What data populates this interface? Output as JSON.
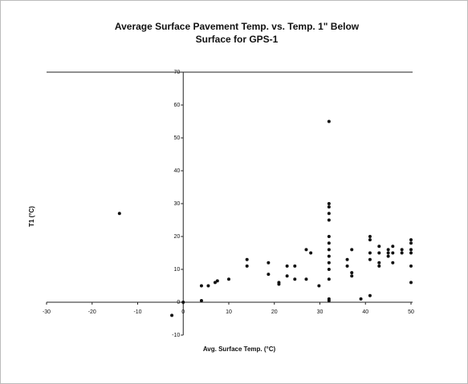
{
  "chart_data": {
    "type": "scatter",
    "title": [
      "Average Surface Pavement Temp. vs. Temp. 1\" Below",
      "Surface for GPS-1"
    ],
    "x_label": "Avg. Surface Temp. (°C)",
    "y_label": "T1 (°C)",
    "xlim": [
      -30,
      50
    ],
    "xticks": [
      -30,
      -20,
      -10,
      0,
      10,
      20,
      30,
      40,
      50
    ],
    "ylim": [
      -10,
      70
    ],
    "yticks": [
      -10,
      0,
      10,
      20,
      30,
      40,
      50,
      60,
      70
    ],
    "color": "#111111",
    "x": [
      -14,
      -2.5,
      0,
      4,
      4,
      5.5,
      7,
      7.5,
      10,
      14,
      14,
      18.7,
      18.7,
      21,
      21,
      22.8,
      22.8,
      24.5,
      24.5,
      27,
      27,
      28,
      29.8,
      32,
      32,
      32,
      32,
      32,
      32,
      32,
      32,
      32,
      32,
      32,
      32,
      32,
      32,
      36,
      36,
      37,
      37,
      37,
      39,
      41,
      41,
      41,
      41,
      41,
      43,
      43,
      43,
      43,
      45,
      45,
      45,
      46,
      46,
      46,
      48,
      48,
      50,
      50,
      50,
      50,
      50,
      50
    ],
    "values": [
      27,
      -4,
      0,
      5,
      0.5,
      5,
      6,
      6.5,
      7,
      13,
      11,
      12,
      8.5,
      5.5,
      6,
      11,
      8,
      11,
      7,
      16,
      7,
      15,
      5,
      55,
      30,
      29,
      27,
      25,
      20,
      18,
      16,
      14,
      12,
      10,
      7,
      1,
      0.5,
      13,
      11,
      16,
      9,
      8,
      1,
      20,
      19,
      15,
      13,
      2,
      17,
      15,
      12,
      11,
      16,
      15,
      14,
      17,
      15,
      12,
      16,
      15,
      19,
      18,
      16,
      15,
      11,
      6
    ]
  }
}
